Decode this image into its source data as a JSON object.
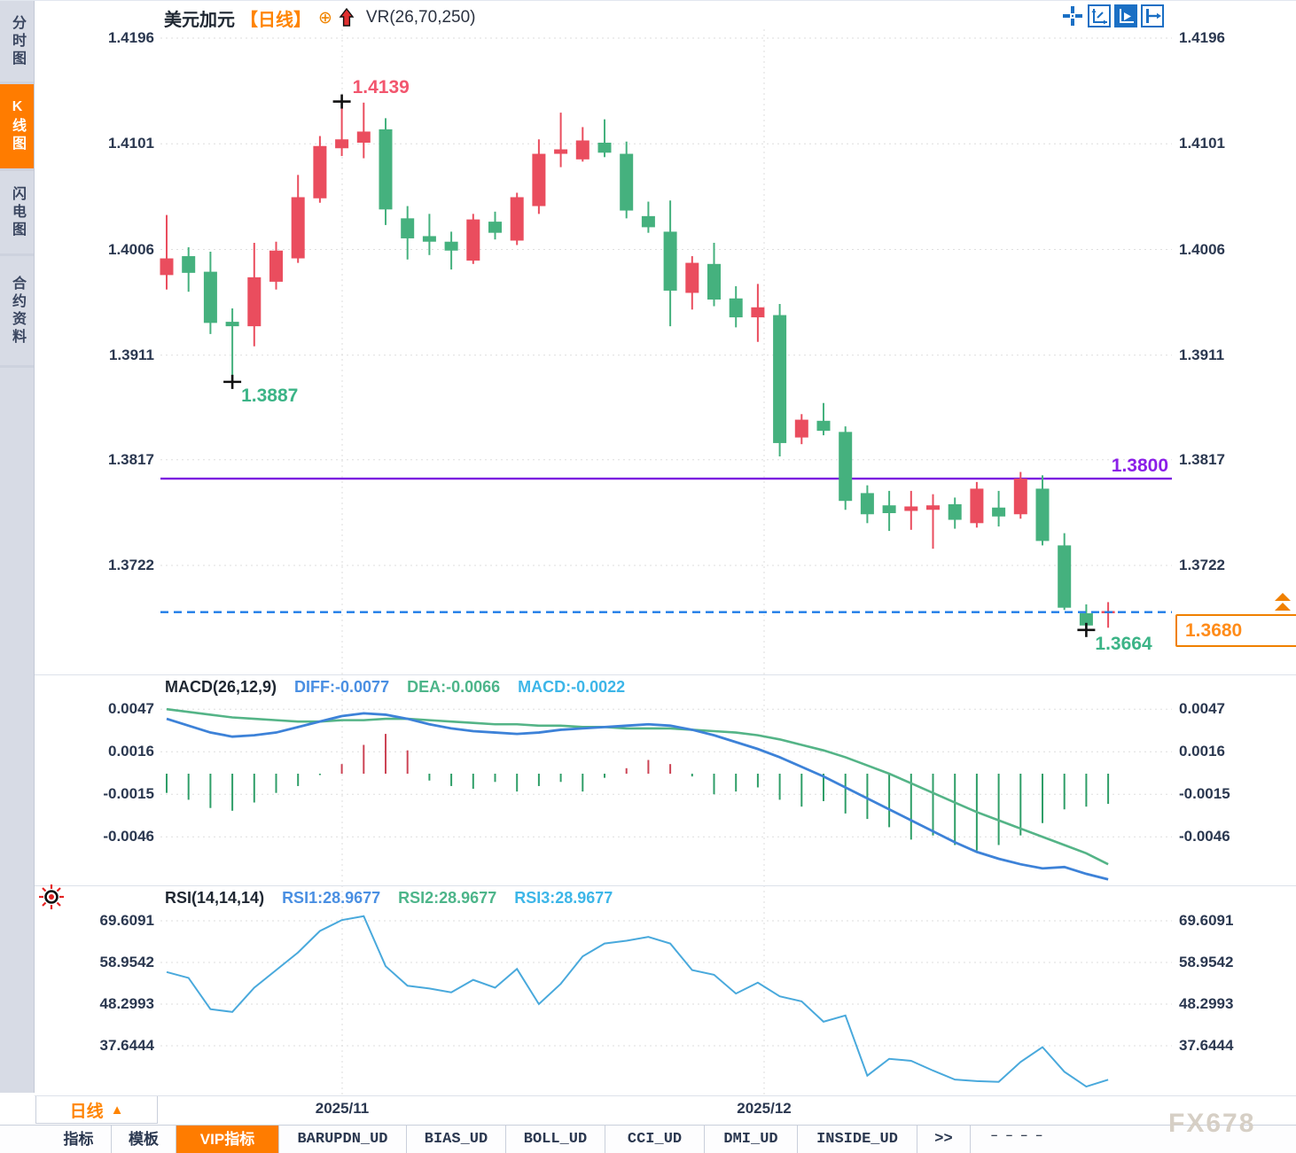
{
  "sidebar": {
    "items": [
      {
        "label": "分时图",
        "active": false
      },
      {
        "label": "K线图",
        "active": true
      },
      {
        "label": "闪电图",
        "active": false
      },
      {
        "label": "合约资料",
        "active": false
      }
    ]
  },
  "header": {
    "symbol": "美元加元",
    "period_tag": "【日线】",
    "oplus": "⊕",
    "overlay_indicator": "VR(26,70,250)"
  },
  "toolbar": {
    "icons": [
      {
        "name": "crosshair-icon",
        "active": false
      },
      {
        "name": "axis-zoom-icon",
        "active": false
      },
      {
        "name": "axis-play-icon",
        "active": true
      },
      {
        "name": "axis-pan-icon",
        "active": false
      }
    ]
  },
  "main_chart": {
    "y_ticks": [
      "1.4196",
      "1.4101",
      "1.4006",
      "1.3911",
      "1.3817",
      "1.3722"
    ],
    "x_ticks": [
      "2025/11",
      "2025/12"
    ],
    "high_label": "1.4139",
    "low_label": "1.3887",
    "support_label": "1.3800",
    "last_low_label": "1.3664",
    "current_price_label": "1.3680"
  },
  "macd_panel": {
    "title": "MACD(26,12,9)",
    "diff_label": "DIFF:-0.0077",
    "dea_label": "DEA:-0.0066",
    "macd_label": "MACD:-0.0022",
    "y_ticks": [
      "0.0047",
      "0.0016",
      "-0.0015",
      "-0.0046"
    ]
  },
  "rsi_panel": {
    "title": "RSI(14,14,14)",
    "rsi1_label": "RSI1:28.9677",
    "rsi2_label": "RSI2:28.9677",
    "rsi3_label": "RSI3:28.9677",
    "y_ticks": [
      "69.6091",
      "58.9542",
      "48.2993",
      "37.6444"
    ]
  },
  "bottom": {
    "period_button": {
      "label": "日线",
      "arrow": "▲"
    },
    "tabs": [
      {
        "label": "指标",
        "active": false
      },
      {
        "label": "模板",
        "active": false
      },
      {
        "label": "VIP指标",
        "active": true
      },
      {
        "label": "BARUPDN_UD",
        "active": false
      },
      {
        "label": "BIAS_UD",
        "active": false
      },
      {
        "label": "BOLL_UD",
        "active": false
      },
      {
        "label": "CCI_UD",
        "active": false
      },
      {
        "label": "DMI_UD",
        "active": false
      },
      {
        "label": "INSIDE_UD",
        "active": false
      },
      {
        "label": ">>",
        "active": false
      }
    ],
    "overflow_marks": "– –  – –"
  },
  "watermark": "FX678",
  "colors": {
    "up": "#ea4d5e",
    "down": "#45b17e",
    "support_line": "#7b16e0",
    "current_line": "#1e7ce8",
    "accent_orange": "#ff7c00",
    "diff_line": "#3d82d8",
    "dea_line": "#54b487",
    "hist_up": "#cc4455",
    "hist_down": "#2f9e68",
    "rsi_line": "#49a9dc",
    "axis_text": "#2b3850",
    "grid": "#dedede"
  },
  "chart_data": [
    {
      "type": "candlestick",
      "title": "美元加元 【日线】",
      "ylabel": "price",
      "y_ticks": [
        1.4196,
        1.4101,
        1.4006,
        1.3911,
        1.3817,
        1.3722
      ],
      "x_tick_labels": [
        "2025/11",
        "2025/12"
      ],
      "support_line": 1.38,
      "current_price": 1.368,
      "annotations": {
        "high": {
          "index": 8,
          "price": 1.4139
        },
        "low": {
          "index": 3,
          "price": 1.3887
        },
        "last_low": {
          "index": 42,
          "price": 1.3664
        }
      },
      "candles_ohlc": [
        [
          1.3983,
          1.4037,
          1.397,
          1.3998
        ],
        [
          1.4,
          1.4008,
          1.3968,
          1.3985
        ],
        [
          1.3986,
          1.4004,
          1.393,
          1.394
        ],
        [
          1.3941,
          1.3953,
          1.3887,
          1.3937
        ],
        [
          1.3937,
          1.4012,
          1.3919,
          1.3981
        ],
        [
          1.3977,
          1.4013,
          1.397,
          1.4005
        ],
        [
          1.3998,
          1.4073,
          1.3994,
          1.4053
        ],
        [
          1.4052,
          1.4108,
          1.4048,
          1.4099
        ],
        [
          1.4097,
          1.4139,
          1.409,
          1.4105
        ],
        [
          1.4102,
          1.4138,
          1.4088,
          1.4112
        ],
        [
          1.4114,
          1.4124,
          1.4028,
          1.4042
        ],
        [
          1.4034,
          1.4045,
          1.3997,
          1.4016
        ],
        [
          1.4018,
          1.4038,
          1.4001,
          1.4013
        ],
        [
          1.4013,
          1.4022,
          1.3988,
          1.4005
        ],
        [
          1.3996,
          1.4038,
          1.3993,
          1.4033
        ],
        [
          1.4031,
          1.404,
          1.4015,
          1.4021
        ],
        [
          1.4014,
          1.4057,
          1.401,
          1.4053
        ],
        [
          1.4045,
          1.4105,
          1.4038,
          1.4092
        ],
        [
          1.4092,
          1.4129,
          1.408,
          1.4096
        ],
        [
          1.4087,
          1.4116,
          1.4085,
          1.4104
        ],
        [
          1.4102,
          1.4123,
          1.4089,
          1.4093
        ],
        [
          1.4092,
          1.4103,
          1.4034,
          1.4041
        ],
        [
          1.4036,
          1.4049,
          1.4021,
          1.4026
        ],
        [
          1.4022,
          1.405,
          1.3937,
          1.3969
        ],
        [
          1.3967,
          1.4,
          1.3952,
          1.3994
        ],
        [
          1.3993,
          1.4012,
          1.3955,
          1.3961
        ],
        [
          1.3962,
          1.3973,
          1.3936,
          1.3945
        ],
        [
          1.3945,
          1.3975,
          1.3923,
          1.3954
        ],
        [
          1.3947,
          1.3957,
          1.382,
          1.3832
        ],
        [
          1.3837,
          1.3858,
          1.3831,
          1.3853
        ],
        [
          1.3852,
          1.3868,
          1.3839,
          1.3843
        ],
        [
          1.3842,
          1.3847,
          1.3772,
          1.378
        ],
        [
          1.3787,
          1.3794,
          1.376,
          1.3768
        ],
        [
          1.3776,
          1.3789,
          1.3753,
          1.3769
        ],
        [
          1.3771,
          1.3789,
          1.3754,
          1.3775
        ],
        [
          1.3772,
          1.3786,
          1.3737,
          1.3776
        ],
        [
          1.3777,
          1.3783,
          1.3755,
          1.3763
        ],
        [
          1.376,
          1.3797,
          1.3756,
          1.3791
        ],
        [
          1.3774,
          1.3789,
          1.3757,
          1.3766
        ],
        [
          1.3768,
          1.3806,
          1.3764,
          1.38
        ],
        [
          1.3791,
          1.3803,
          1.374,
          1.3744
        ],
        [
          1.374,
          1.3751,
          1.3682,
          1.3684
        ],
        [
          1.3679,
          1.3687,
          1.3664,
          1.3668
        ],
        [
          1.3679,
          1.3689,
          1.3666,
          1.3681
        ]
      ]
    },
    {
      "type": "bar",
      "title": "MACD(26,12,9)",
      "y_ticks": [
        0.0047,
        0.0016,
        -0.0015,
        -0.0046
      ],
      "last_values": {
        "DIFF": -0.0077,
        "DEA": -0.0066,
        "MACD": -0.0022
      },
      "series": [
        {
          "name": "DIFF",
          "values": [
            0.004,
            0.0035,
            0.003,
            0.0027,
            0.0028,
            0.003,
            0.0034,
            0.0038,
            0.0042,
            0.0044,
            0.0043,
            0.004,
            0.0036,
            0.0033,
            0.0031,
            0.003,
            0.0029,
            0.003,
            0.0032,
            0.0033,
            0.0034,
            0.0035,
            0.0036,
            0.0035,
            0.0032,
            0.0028,
            0.0023,
            0.0018,
            0.0012,
            0.0005,
            -0.0002,
            -0.001,
            -0.0018,
            -0.0026,
            -0.0034,
            -0.0042,
            -0.005,
            -0.0057,
            -0.0062,
            -0.0066,
            -0.0069,
            -0.0068,
            -0.0073,
            -0.0077
          ]
        },
        {
          "name": "DEA",
          "values": [
            0.0047,
            0.0045,
            0.0043,
            0.0041,
            0.004,
            0.0039,
            0.0038,
            0.0038,
            0.0039,
            0.0039,
            0.004,
            0.004,
            0.0039,
            0.0038,
            0.0037,
            0.0036,
            0.0036,
            0.0035,
            0.0035,
            0.0034,
            0.0034,
            0.0033,
            0.0033,
            0.0033,
            0.0032,
            0.0031,
            0.003,
            0.0028,
            0.0025,
            0.0021,
            0.0017,
            0.0012,
            0.0006,
            0.0,
            -0.0007,
            -0.0014,
            -0.0021,
            -0.0028,
            -0.0034,
            -0.004,
            -0.0046,
            -0.0052,
            -0.0058,
            -0.0066
          ]
        },
        {
          "name": "MACD_hist",
          "values": [
            -0.0014,
            -0.0019,
            -0.0025,
            -0.0027,
            -0.0021,
            -0.0014,
            -0.0009,
            -0.0001,
            0.0007,
            0.0021,
            0.0029,
            0.0017,
            -0.0005,
            -0.0009,
            -0.0011,
            -0.0006,
            -0.0013,
            -0.0009,
            -0.0006,
            -0.0013,
            -0.0003,
            0.0004,
            0.001,
            0.0007,
            -0.0002,
            -0.0015,
            -0.0013,
            -0.001,
            -0.0019,
            -0.0024,
            -0.002,
            -0.0029,
            -0.0033,
            -0.0039,
            -0.0048,
            -0.0045,
            -0.0052,
            -0.0056,
            -0.0052,
            -0.0045,
            -0.0036,
            -0.0026,
            -0.0024,
            -0.0022
          ]
        }
      ]
    },
    {
      "type": "line",
      "title": "RSI(14,14,14)",
      "y_ticks": [
        69.6091,
        58.9542,
        48.2993,
        37.6444
      ],
      "last_values": {
        "RSI1": 28.9677,
        "RSI2": 28.9677,
        "RSI3": 28.9677
      },
      "series": [
        {
          "name": "RSI",
          "values": [
            56.5,
            55.0,
            47.0,
            46.3,
            52.5,
            57.0,
            61.5,
            67.0,
            69.8,
            70.8,
            58.0,
            53.0,
            52.3,
            51.3,
            54.5,
            52.5,
            57.3,
            48.3,
            53.5,
            60.5,
            63.8,
            64.5,
            65.5,
            63.8,
            57.0,
            55.8,
            51.0,
            53.8,
            50.3,
            49.0,
            43.8,
            45.4,
            30.0,
            34.3,
            33.8,
            31.3,
            29.0,
            28.6,
            28.4,
            33.5,
            37.3,
            31.0,
            27.2,
            28.9677
          ]
        }
      ]
    }
  ]
}
